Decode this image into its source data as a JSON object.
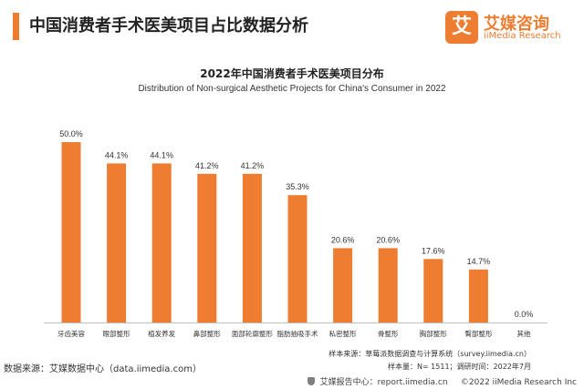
{
  "header": {
    "title": "中国消费者手术医美项目占比数据分析",
    "logo_badge": "艾",
    "logo_cn": "艾媒咨询",
    "logo_en": "iiMedia Research"
  },
  "colors": {
    "accent": "#ee7d31",
    "bar": "#ee7d31"
  },
  "chart_data": {
    "type": "bar",
    "title": "2022年中国消费者手术医美项目分布",
    "subtitle": "Distribution of Non-surgical Aesthetic Projects for China's Consumer in 2022",
    "categories": [
      "牙齿美容",
      "眼部整形",
      "植发养发",
      "鼻部整形",
      "面部轮廓整形",
      "脂肪抽吸手术",
      "私密整形",
      "骨整形",
      "胸部整形",
      "臀部整形",
      "其他"
    ],
    "values": [
      50.0,
      44.1,
      44.1,
      41.2,
      41.2,
      35.3,
      20.6,
      20.6,
      17.6,
      14.7,
      0.0
    ],
    "value_labels": [
      "50.0%",
      "44.1%",
      "44.1%",
      "41.2%",
      "41.2%",
      "35.3%",
      "20.6%",
      "20.6%",
      "17.6%",
      "14.7%",
      "0.0%"
    ],
    "ylim": [
      0,
      50
    ],
    "grid": false,
    "legend": "none"
  },
  "footer": {
    "source": "数据来源：艾媒数据中心（data.iimedia.com）",
    "note_sample_source": "样本来源：草莓派数据调查与计算系统（survey.iimedia.cn）",
    "note_sample_size": "样本量：N= 1511；调研时间：2022年7月",
    "report_center": "艾媒报告中心：report.iimedia.cn",
    "copyright": "©2022  iiMedia Research  Inc"
  }
}
